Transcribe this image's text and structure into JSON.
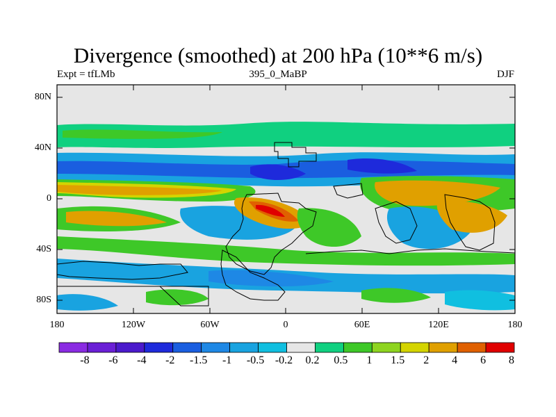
{
  "header": {
    "title": "Divergence (smoothed) at 200 hPa (10**6 m/s)",
    "left": "Expt = tfLMb",
    "center": "395_0_MaBP",
    "right": "DJF"
  },
  "map": {
    "projection": "cylindrical-equidistant",
    "lon_range": [
      -180,
      180
    ],
    "lat_range": [
      -90,
      90
    ],
    "y_ticks": [
      "80N",
      "40N",
      "0",
      "40S",
      "80S"
    ],
    "x_ticks": [
      "180",
      "120W",
      "60W",
      "0",
      "60E",
      "120E",
      "180"
    ]
  },
  "colorbar": {
    "labels": [
      "-8",
      "-6",
      "-4",
      "-2",
      "-1.5",
      "-1",
      "-0.5",
      "-0.2",
      "0.2",
      "0.5",
      "1",
      "1.5",
      "2",
      "4",
      "6",
      "8"
    ],
    "colors": [
      "#8a2be2",
      "#6a1fd6",
      "#4b1acc",
      "#1e2adb",
      "#1a5ee0",
      "#1e88e5",
      "#19a3e0",
      "#10bfe0",
      "#e6e6e6",
      "#10d080",
      "#3ec828",
      "#8ed420",
      "#d4d400",
      "#e0a000",
      "#e06000",
      "#e00000"
    ]
  }
}
